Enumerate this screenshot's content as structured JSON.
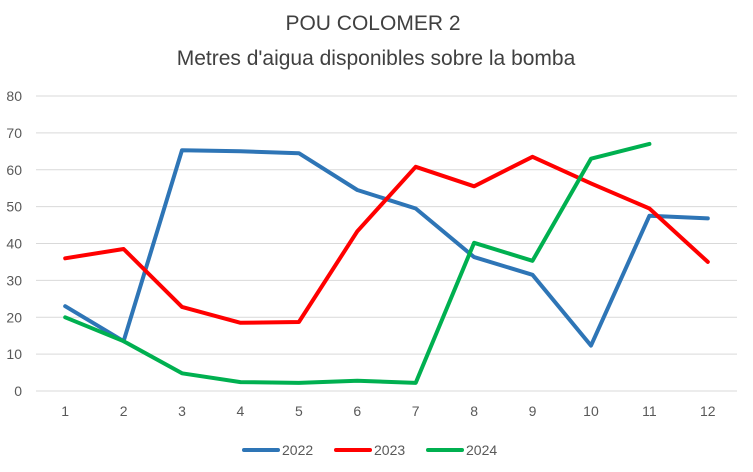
{
  "chart_data": {
    "type": "line",
    "title": "POU COLOMER 2",
    "subtitle": "Metres d'aigua disponibles sobre la bomba",
    "xlabel": "",
    "ylabel": "",
    "x": [
      1,
      2,
      3,
      4,
      5,
      6,
      7,
      8,
      9,
      10,
      11,
      12
    ],
    "x_ticks": [
      "1",
      "2",
      "3",
      "4",
      "5",
      "6",
      "7",
      "8",
      "9",
      "10",
      "11",
      "12"
    ],
    "ylim": [
      0,
      80
    ],
    "y_ticks": [
      "0",
      "10",
      "20",
      "30",
      "40",
      "50",
      "60",
      "70",
      "80"
    ],
    "grid": true,
    "legend_position": "bottom",
    "series": [
      {
        "name": "2022",
        "color": "#2e75b6",
        "values": [
          23,
          13.5,
          65.3,
          65,
          64.5,
          54.5,
          49.5,
          36.3,
          31.5,
          12.3,
          47.5,
          46.8
        ]
      },
      {
        "name": "2023",
        "color": "#ff0000",
        "values": [
          36,
          38.5,
          22.8,
          18.5,
          18.7,
          43.3,
          60.8,
          55.5,
          63.5,
          56.3,
          49.5,
          35
        ]
      },
      {
        "name": "2024",
        "color": "#00b050",
        "values": [
          20,
          13.5,
          4.8,
          2.4,
          2.2,
          2.8,
          2.2,
          40.2,
          35.3,
          63,
          67,
          null
        ]
      }
    ]
  }
}
